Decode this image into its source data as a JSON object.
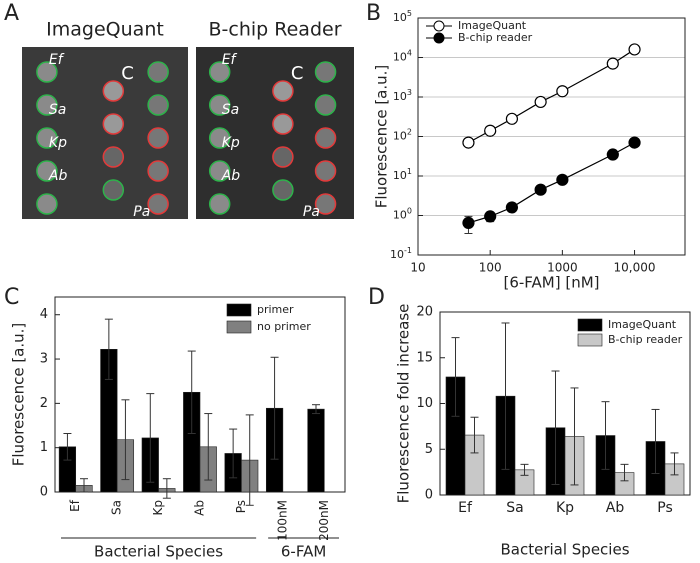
{
  "panel_labels": [
    "A",
    "B",
    "C",
    "D"
  ],
  "images": [
    {
      "title": "ImageQuant",
      "spot_labels": [
        "Ef",
        "Sa",
        "Kp",
        "Ab",
        "C",
        "Pa"
      ]
    },
    {
      "title": "B-chip Reader",
      "spot_labels": [
        "Ef",
        "Sa",
        "Kp",
        "Ab",
        "C",
        "Pa"
      ]
    }
  ],
  "chart_data": [
    {
      "type": "line",
      "x_label": "[6-FAM] [nM]",
      "y_label": "Fluorescence [a.u.]",
      "log_x": true,
      "log_y": true,
      "grid": true,
      "legend": "upper left",
      "x": [
        50,
        100,
        200,
        500,
        1000,
        5000,
        10000
      ],
      "series": [
        {
          "name": "ImageQuant",
          "color": "#000",
          "marker": "open-circle",
          "values": [
            70,
            140,
            280,
            750,
            1400,
            7000,
            16000
          ],
          "errors": [
            12,
            25,
            45,
            120,
            220,
            1100,
            2500
          ]
        },
        {
          "name": "B-chip reader",
          "color": "#000",
          "marker": "filled-circle",
          "values": [
            0.65,
            0.95,
            1.6,
            4.5,
            8,
            35,
            70
          ],
          "errors": [
            0.3,
            0.25,
            0.15,
            0.4,
            0.6,
            3,
            5
          ]
        }
      ],
      "xlim": [
        10,
        50000
      ],
      "xticks": [
        10,
        100,
        1000,
        {
          "value": 10000,
          "label": "10,000"
        }
      ],
      "ylim": [
        0.1,
        100000
      ],
      "yticks": [
        {
          "value": 0.1,
          "label": "10",
          "exponent": "-1"
        },
        {
          "value": 1,
          "label": "10",
          "exponent": "0"
        },
        {
          "value": 10,
          "label": "10",
          "exponent": "1"
        },
        {
          "value": 100,
          "label": "10",
          "exponent": "2"
        },
        {
          "value": 1000,
          "label": "10",
          "exponent": "3"
        },
        {
          "value": 10000,
          "label": "10",
          "exponent": "4"
        },
        {
          "value": 100000,
          "label": "10",
          "exponent": "5"
        }
      ]
    },
    {
      "type": "bar",
      "y_label": "Fluorescence [a.u.]",
      "group_labels": [
        "Bacterial Species",
        "6-FAM"
      ],
      "legend": "upper right",
      "categories": [
        "Ef",
        "Sa",
        "Kp",
        "Ab",
        "Ps",
        "100nM",
        "200nM"
      ],
      "series": [
        {
          "name": "primer",
          "color": "#000000",
          "values": [
            1.02,
            3.22,
            1.22,
            2.25,
            0.87,
            1.89,
            1.87
          ],
          "errors": [
            0.3,
            0.68,
            1.0,
            0.93,
            0.55,
            1.15,
            0.1
          ]
        },
        {
          "name": "no primer",
          "color": "#808080",
          "values": [
            0.15,
            1.18,
            0.08,
            1.02,
            0.72,
            null,
            null
          ],
          "errors": [
            0.15,
            0.9,
            0.22,
            0.75,
            1.02,
            null,
            null
          ]
        }
      ],
      "ylim": [
        0,
        4.4
      ],
      "yticks": [
        0,
        1,
        2,
        3,
        4
      ]
    },
    {
      "type": "bar",
      "x_label": "Bacterial Species",
      "y_label": "Fluorescence fold increase",
      "legend": "upper right",
      "categories": [
        "Ef",
        "Sa",
        "Kp",
        "Ab",
        "Ps"
      ],
      "series": [
        {
          "name": "ImageQuant",
          "color": "#000000",
          "values": [
            12.9,
            10.8,
            7.35,
            6.5,
            5.85
          ],
          "errors": [
            4.3,
            8.0,
            6.2,
            3.7,
            3.5
          ]
        },
        {
          "name": "B-chip reader",
          "color": "#c8c8c8",
          "values": [
            6.55,
            2.75,
            6.4,
            2.45,
            3.4
          ],
          "errors": [
            1.95,
            0.6,
            5.3,
            0.9,
            1.2
          ]
        }
      ],
      "ylim": [
        0,
        20
      ],
      "yticks": [
        0,
        5,
        10,
        15,
        20
      ]
    }
  ]
}
